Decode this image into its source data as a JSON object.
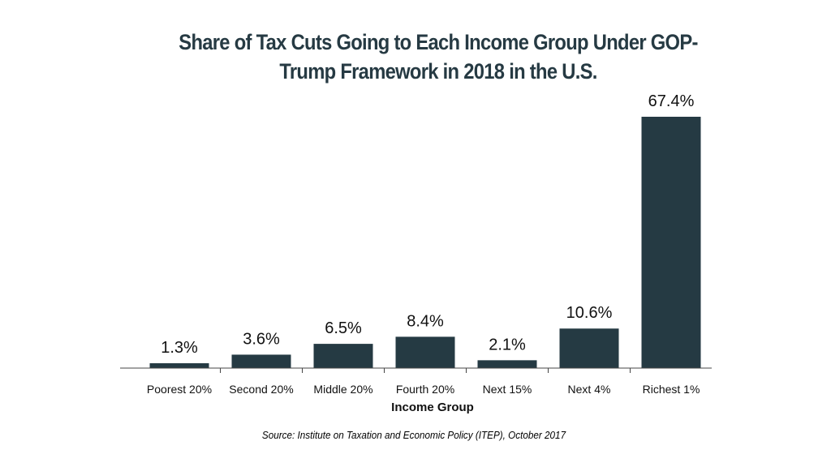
{
  "chart_data": {
    "type": "bar",
    "title": "Share of Tax Cuts Going to Each Income Group Under GOP-Trump Framework in 2018 in the U.S.",
    "title_color": "#263a43",
    "categories": [
      "Poorest 20%",
      "Second 20%",
      "Middle 20%",
      "Fourth 20%",
      "Next 15%",
      "Next 4%",
      "Richest 1%"
    ],
    "values": [
      1.3,
      3.6,
      6.5,
      8.4,
      2.1,
      10.6,
      67.4
    ],
    "value_labels": [
      "1.3%",
      "3.6%",
      "6.5%",
      "8.4%",
      "2.1%",
      "10.6%",
      "67.4%"
    ],
    "bar_color": "#253a43",
    "xlabel": "Income Group",
    "ylabel": "",
    "ylim": [
      0,
      67.4
    ],
    "grid": false,
    "source": "Source: Institute on Taxation and Economic Policy (ITEP), October 2017"
  }
}
